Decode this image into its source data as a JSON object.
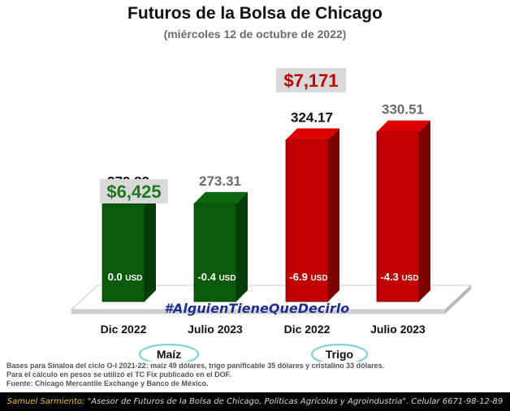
{
  "title": "Futuros de la Bolsa de Chicago",
  "subtitle": "(miércoles 12 de octubre de 2022)",
  "colors": {
    "maiz": "#0b5a0b",
    "trigo": "#c00000",
    "label_green": "#1f7a1f",
    "label_red": "#c00000",
    "highlight_box": "#d9d9d9"
  },
  "chart_data": {
    "type": "bar",
    "title": "Futuros de la Bolsa de Chicago",
    "subtitle": "(miércoles 12 de octubre de 2022)",
    "categories": [
      "Dic 2022",
      "Julio 2023",
      "Dic 2022",
      "Julio 2023"
    ],
    "groups": [
      {
        "name": "Maíz",
        "categories": [
          "Dic 2022",
          "Julio 2023"
        ],
        "price_mxn": "$6,425"
      },
      {
        "name": "Trigo",
        "categories": [
          "Dic 2022",
          "Julio 2023"
        ],
        "price_mxn": "$7,171"
      }
    ],
    "values": [
      272.82,
      273.31,
      324.17,
      330.51
    ],
    "value_labels": [
      "272.82",
      "273.31",
      "324.17",
      "330.51"
    ],
    "changes": [
      "0.0 USD",
      "-0.4 USD",
      "-6.9 USD",
      "-4.3 USD"
    ],
    "bar_colors": [
      "#0b5a0b",
      "#0b5a0b",
      "#c00000",
      "#c00000"
    ],
    "label_colors": [
      "#111111",
      "#6b6b6b",
      "#111111",
      "#6b6b6b"
    ],
    "ylim": [
      200,
      340
    ]
  },
  "watermark": "#AlguienTieneQueDecirlo",
  "notes": [
    "Bases para Sinaloa del ciclo O-I 2021-22: maíz 49 dólares, trigo panificable 35 dólares y cristalino 33 dólares.",
    "Para el cálculo en pesos se utilizó el TC Fix publicado en el DOF.",
    "Fuente: Chicago Mercantile Exchange y Banco de México."
  ],
  "footer": {
    "name": "Samuel Sarmiento:",
    "text": " \"Asesor de Futuros de la Bolsa de Chicago, Políticas Agrícolas y Agroindustria\". Celular 6671-98-12-89"
  }
}
